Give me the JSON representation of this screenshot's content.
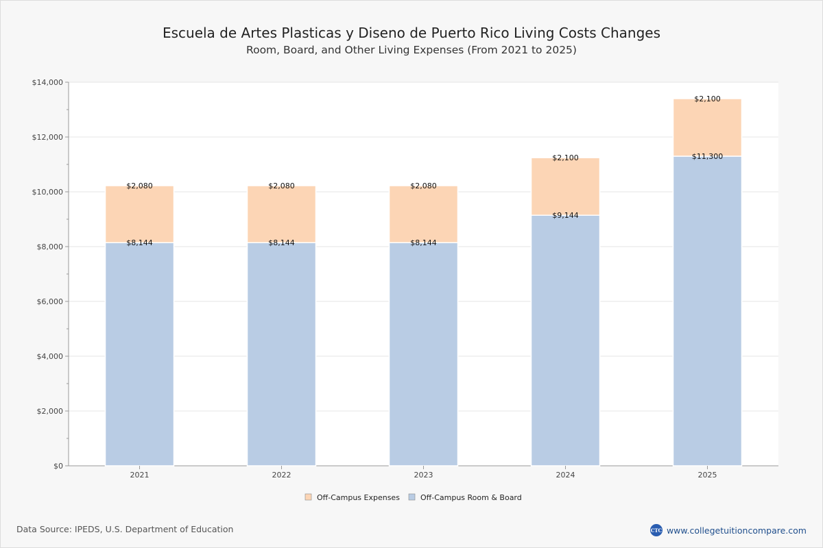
{
  "header": {
    "title": "Escuela de Artes Plasticas y Diseno de Puerto Rico Living Costs Changes",
    "subtitle": "Room, Board, and Other Living Expenses (From 2021 to 2025)"
  },
  "footer": {
    "source": "Data Source: IPEDS, U.S. Department of Education",
    "brand_logo_text": "CTC",
    "brand_url": "www.collegetuitioncompare.com"
  },
  "colors": {
    "room_board": "#b9cce4",
    "expenses": "#fcd5b5",
    "grid": "#e6e6e6",
    "axis": "#999999",
    "plot_bg": "#ffffff"
  },
  "chart_data": {
    "type": "bar",
    "stacked": true,
    "categories": [
      "2021",
      "2022",
      "2023",
      "2024",
      "2025"
    ],
    "series": [
      {
        "name": "Off-Campus Room & Board",
        "values": [
          8144,
          8144,
          8144,
          9144,
          11300
        ],
        "labels": [
          "$8,144",
          "$8,144",
          "$8,144",
          "$9,144",
          "$11,300"
        ]
      },
      {
        "name": "Off-Campus Expenses",
        "values": [
          2080,
          2080,
          2080,
          2100,
          2100
        ],
        "labels": [
          "$2,080",
          "$2,080",
          "$2,080",
          "$2,100",
          "$2,100"
        ]
      }
    ],
    "y_ticks": [
      "$0",
      "$2,000",
      "$4,000",
      "$6,000",
      "$8,000",
      "$10,000",
      "$12,000",
      "$14,000"
    ],
    "ylim": [
      0,
      14000
    ],
    "legend_order": [
      "Off-Campus Expenses",
      "Off-Campus Room & Board"
    ],
    "legend_position": "bottom",
    "grid": true
  }
}
